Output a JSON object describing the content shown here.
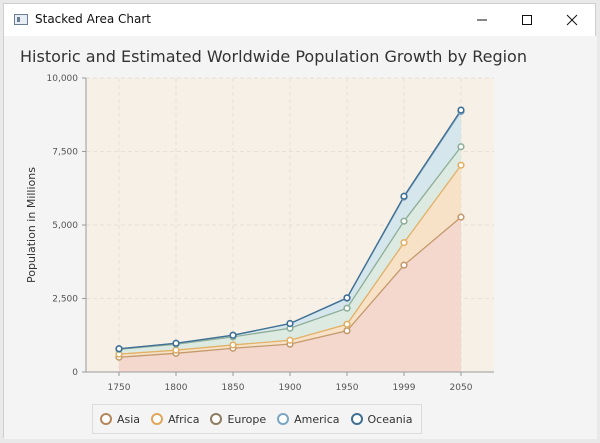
{
  "window": {
    "title": "Stacked Area Chart"
  },
  "chart_data": {
    "type": "area",
    "stacked": true,
    "title": "Historic and Estimated Worldwide Population Growth by Region",
    "xlabel": "",
    "ylabel": "Population in Millions",
    "categories": [
      "1750",
      "1800",
      "1850",
      "1900",
      "1950",
      "1999",
      "2050"
    ],
    "ylim": [
      0,
      10000
    ],
    "yticks": [
      "0",
      "2,500",
      "5,000",
      "7,500",
      "10,000"
    ],
    "grid": true,
    "legend_position": "bottom",
    "series": [
      {
        "name": "Asia",
        "values": [
          502,
          635,
          809,
          947,
          1402,
          3634,
          5268
        ],
        "stroke": "#c39a6c",
        "fill": "#f3d3c9"
      },
      {
        "name": "Africa",
        "values": [
          106,
          107,
          111,
          133,
          221,
          767,
          1766
        ],
        "stroke": "#e2b066",
        "fill": "#f7dfc2"
      },
      {
        "name": "Europe",
        "values": [
          163,
          203,
          276,
          408,
          547,
          729,
          628
        ],
        "stroke": "#8fae98",
        "fill": "#d7e9df"
      },
      {
        "name": "America",
        "values": [
          18,
          31,
          54,
          156,
          339,
          818,
          1201
        ],
        "stroke": "#7ea3be",
        "fill": "#cfe4ec"
      },
      {
        "name": "Oceania",
        "values": [
          2,
          2,
          2,
          6,
          13,
          30,
          46
        ],
        "stroke": "#3f6f93",
        "fill": "#c6dde6"
      }
    ],
    "legend_symbol_colors": [
      "#b5875a",
      "#e2a65a",
      "#8d7c5f",
      "#7aa6c5",
      "#3f6f93"
    ]
  }
}
